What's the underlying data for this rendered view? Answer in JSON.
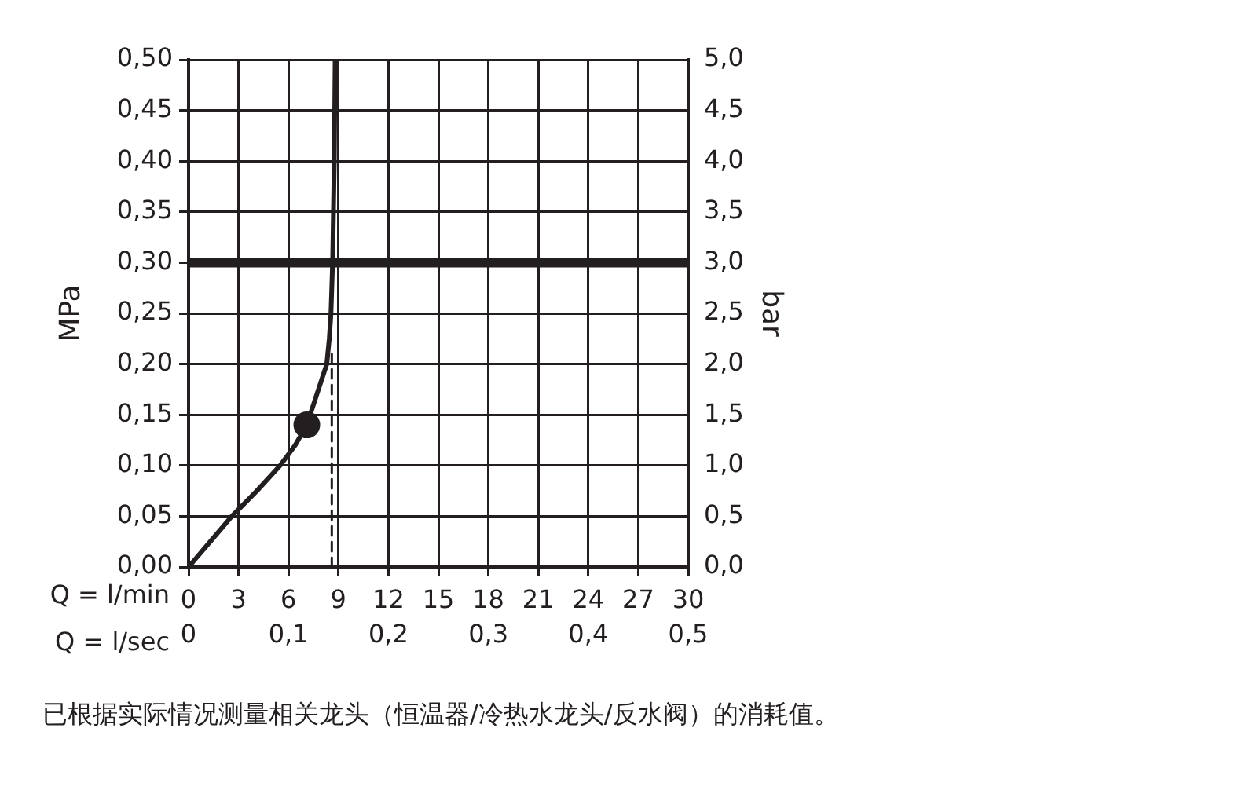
{
  "chart_data": {
    "type": "line",
    "xlabel": "Q = l/min",
    "x2label": "Q = l/sec",
    "ylabel": "MPa",
    "y2label": "bar",
    "xlim": [
      0,
      30
    ],
    "xticks": [
      0,
      3,
      6,
      9,
      12,
      15,
      18,
      21,
      24,
      27,
      30
    ],
    "x2lim": [
      0,
      0.5
    ],
    "x2ticks": [
      {
        "value": 0,
        "label": "0"
      },
      {
        "value": 0.1,
        "label": "0,1"
      },
      {
        "value": 0.2,
        "label": "0,2"
      },
      {
        "value": 0.3,
        "label": "0,3"
      },
      {
        "value": 0.4,
        "label": "0,4"
      },
      {
        "value": 0.5,
        "label": "0,5"
      }
    ],
    "ylim": [
      0,
      0.5
    ],
    "yticks": [
      {
        "value": 0,
        "label": "0,00"
      },
      {
        "value": 0.05,
        "label": "0,05"
      },
      {
        "value": 0.1,
        "label": "0,10"
      },
      {
        "value": 0.15,
        "label": "0,15"
      },
      {
        "value": 0.2,
        "label": "0,20"
      },
      {
        "value": 0.25,
        "label": "0,25"
      },
      {
        "value": 0.3,
        "label": "0,30"
      },
      {
        "value": 0.35,
        "label": "0,35"
      },
      {
        "value": 0.4,
        "label": "0,40"
      },
      {
        "value": 0.45,
        "label": "0,45"
      },
      {
        "value": 0.5,
        "label": "0,50"
      }
    ],
    "y2lim": [
      0,
      5
    ],
    "y2ticks": [
      {
        "value": 0,
        "label": "0,0"
      },
      {
        "value": 0.5,
        "label": "0,5"
      },
      {
        "value": 1,
        "label": "1,0"
      },
      {
        "value": 1.5,
        "label": "1,5"
      },
      {
        "value": 2,
        "label": "2,0"
      },
      {
        "value": 2.5,
        "label": "2,5"
      },
      {
        "value": 3,
        "label": "3,0"
      },
      {
        "value": 3.5,
        "label": "3,5"
      },
      {
        "value": 4,
        "label": "4,0"
      },
      {
        "value": 4.5,
        "label": "4,5"
      },
      {
        "value": 5,
        "label": "5,0"
      }
    ],
    "grid": true,
    "series": [
      {
        "type": "line",
        "color": "#231f20",
        "x": [
          0,
          1.3,
          2.6,
          4.1,
          5.5,
          6.4,
          7.1,
          7.3,
          7.8,
          8.1,
          8.3,
          8.45,
          8.55,
          8.65,
          8.75,
          8.8
        ],
        "values": [
          0,
          0.025,
          0.05,
          0.075,
          0.1,
          0.12,
          0.14,
          0.15,
          0.175,
          0.19,
          0.2,
          0.225,
          0.25,
          0.3,
          0.4,
          0.5
        ]
      },
      {
        "type": "scatter",
        "marker": "circle",
        "color": "#231f20",
        "x": [
          7.1
        ],
        "values": [
          0.14
        ]
      },
      {
        "type": "line",
        "line_style": "dashed",
        "color": "#231f20",
        "x": [
          8.6,
          8.6
        ],
        "values": [
          0,
          0.21
        ]
      }
    ],
    "ref_lines": [
      {
        "axis": "y",
        "value": 0.3,
        "color": "#231f20"
      }
    ],
    "annotations": [
      "已根据实际情况测量相关龙头（恒温器/冷热水龙头/反水阀）的消耗值。"
    ]
  }
}
